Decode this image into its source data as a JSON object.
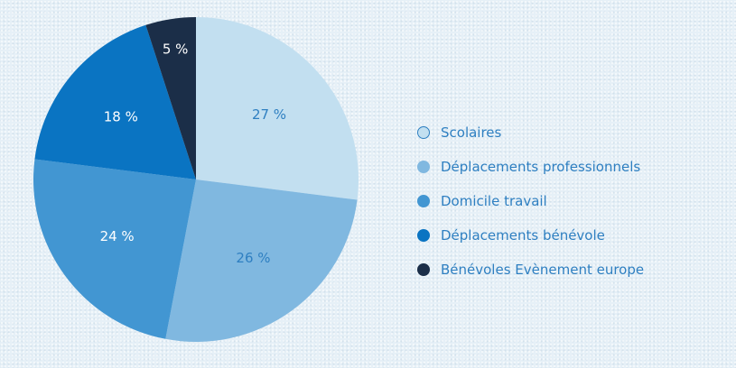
{
  "chart_data": {
    "type": "pie",
    "start_angle_deg": 0,
    "direction": "clockwise",
    "slices": [
      {
        "label": "Scolaires",
        "value": 27,
        "display": "27 %",
        "color": "#c2dff0",
        "text_color": "#2e7fc1",
        "legend_border": "#2e7fc1"
      },
      {
        "label": "Déplacements professionnels",
        "value": 26,
        "display": "26 %",
        "color": "#80b8e0",
        "text_color": "#2e7fc1",
        "legend_border": "#80b8e0"
      },
      {
        "label": "Domicile travail",
        "value": 24,
        "display": "24 %",
        "color": "#4296d2",
        "text_color": "#ffffff",
        "legend_border": "#4296d2"
      },
      {
        "label": "Déplacements bénévole",
        "value": 18,
        "display": "18 %",
        "color": "#0a74c2",
        "text_color": "#ffffff",
        "legend_border": "#0a74c2"
      },
      {
        "label": "Bénévoles Evènement europe",
        "value": 5,
        "display": "5 %",
        "color": "#1b2e48",
        "text_color": "#ffffff",
        "legend_border": "#1b2e48"
      }
    ],
    "legend_position": "right"
  }
}
